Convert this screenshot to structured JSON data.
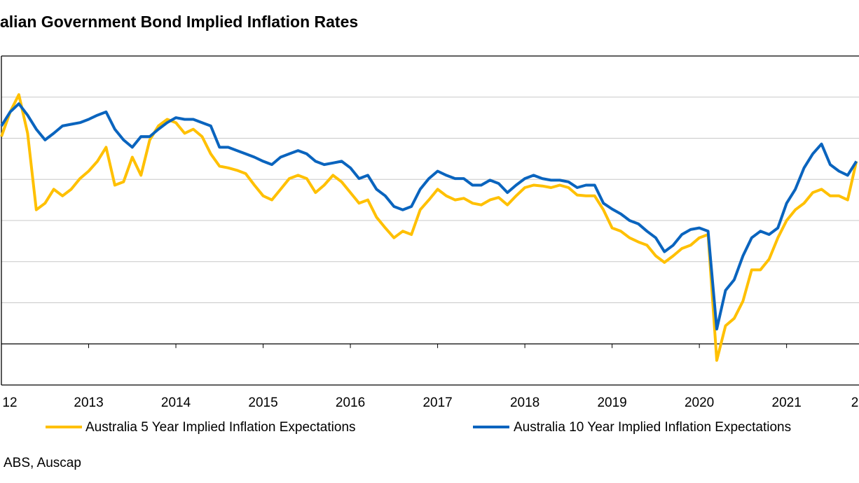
{
  "chart_data": {
    "type": "line",
    "title": "alian Government Bond Implied Inflation Rates",
    "source": "ABS, Auscap",
    "x": [
      2012.0,
      2012.1,
      2012.2,
      2012.3,
      2012.4,
      2012.5,
      2012.6,
      2012.7,
      2012.8,
      2012.9,
      2013.0,
      2013.1,
      2013.2,
      2013.3,
      2013.4,
      2013.5,
      2013.6,
      2013.7,
      2013.8,
      2013.9,
      2014.0,
      2014.1,
      2014.2,
      2014.3,
      2014.4,
      2014.5,
      2014.6,
      2014.7,
      2014.8,
      2014.9,
      2015.0,
      2015.1,
      2015.2,
      2015.3,
      2015.4,
      2015.5,
      2015.6,
      2015.7,
      2015.8,
      2015.9,
      2016.0,
      2016.1,
      2016.2,
      2016.3,
      2016.4,
      2016.5,
      2016.6,
      2016.7,
      2016.8,
      2016.9,
      2017.0,
      2017.1,
      2017.2,
      2017.3,
      2017.4,
      2017.5,
      2017.6,
      2017.7,
      2017.8,
      2017.9,
      2018.0,
      2018.1,
      2018.2,
      2018.3,
      2018.4,
      2018.5,
      2018.6,
      2018.7,
      2018.8,
      2018.9,
      2019.0,
      2019.1,
      2019.2,
      2019.3,
      2019.4,
      2019.5,
      2019.6,
      2019.7,
      2019.8,
      2019.9,
      2020.0,
      2020.1,
      2020.2,
      2020.3,
      2020.4,
      2020.5,
      2020.6,
      2020.7,
      2020.8,
      2020.9,
      2021.0,
      2021.1,
      2021.2,
      2021.3,
      2021.4,
      2021.5,
      2021.6,
      2021.7,
      2021.8
    ],
    "series": [
      {
        "name": "Australia 5 Year Implied Inflation Expectations",
        "color": "#FFC000",
        "values": [
          2.52,
          2.82,
          3.03,
          2.56,
          1.63,
          1.71,
          1.88,
          1.8,
          1.88,
          2.01,
          2.1,
          2.22,
          2.39,
          1.93,
          1.97,
          2.27,
          2.05,
          2.48,
          2.65,
          2.73,
          2.69,
          2.56,
          2.61,
          2.52,
          2.31,
          2.16,
          2.14,
          2.11,
          2.07,
          1.93,
          1.8,
          1.75,
          1.88,
          2.01,
          2.05,
          2.01,
          1.84,
          1.93,
          2.05,
          1.97,
          1.84,
          1.71,
          1.75,
          1.54,
          1.41,
          1.29,
          1.37,
          1.33,
          1.63,
          1.75,
          1.88,
          1.8,
          1.75,
          1.77,
          1.71,
          1.69,
          1.75,
          1.78,
          1.69,
          1.8,
          1.9,
          1.93,
          1.92,
          1.9,
          1.93,
          1.9,
          1.81,
          1.8,
          1.8,
          1.63,
          1.41,
          1.37,
          1.29,
          1.24,
          1.2,
          1.07,
          0.99,
          1.07,
          1.16,
          1.2,
          1.29,
          1.33,
          -0.2,
          0.22,
          0.31,
          0.52,
          0.9,
          0.9,
          1.03,
          1.29,
          1.5,
          1.63,
          1.71,
          1.84,
          1.88,
          1.8,
          1.8,
          1.75,
          2.22
        ]
      },
      {
        "name": "Australia 10 Year Implied Inflation Expectations",
        "color": "#0A64BE",
        "values": [
          2.65,
          2.82,
          2.92,
          2.78,
          2.61,
          2.48,
          2.56,
          2.65,
          2.67,
          2.69,
          2.73,
          2.78,
          2.82,
          2.61,
          2.48,
          2.39,
          2.52,
          2.52,
          2.61,
          2.69,
          2.75,
          2.73,
          2.73,
          2.69,
          2.65,
          2.39,
          2.39,
          2.35,
          2.31,
          2.27,
          2.22,
          2.18,
          2.27,
          2.31,
          2.35,
          2.31,
          2.22,
          2.18,
          2.2,
          2.22,
          2.14,
          2.01,
          2.05,
          1.88,
          1.8,
          1.67,
          1.63,
          1.67,
          1.88,
          2.01,
          2.1,
          2.05,
          2.01,
          2.01,
          1.93,
          1.93,
          1.99,
          1.95,
          1.84,
          1.93,
          2.01,
          2.05,
          2.01,
          1.99,
          1.99,
          1.97,
          1.9,
          1.93,
          1.93,
          1.71,
          1.64,
          1.58,
          1.5,
          1.46,
          1.37,
          1.29,
          1.12,
          1.2,
          1.33,
          1.39,
          1.41,
          1.37,
          0.18,
          0.65,
          0.78,
          1.07,
          1.29,
          1.37,
          1.33,
          1.41,
          1.71,
          1.88,
          2.14,
          2.31,
          2.43,
          2.18,
          2.1,
          2.05,
          2.22
        ]
      }
    ],
    "xlim": [
      2012,
      2021.83
    ],
    "xticks": [
      {
        "value": 2012,
        "label": "12"
      },
      2013,
      2014,
      2015,
      2016,
      2017,
      2018,
      2019,
      2020,
      2021,
      {
        "value": 2022,
        "label": "2"
      }
    ],
    "ylim": [
      -0.5,
      3.5
    ],
    "yticks": [
      -0.5,
      0,
      0.5,
      1,
      1.5,
      2,
      2.5,
      3,
      3.5
    ],
    "grid": true,
    "legend": "bottom"
  }
}
